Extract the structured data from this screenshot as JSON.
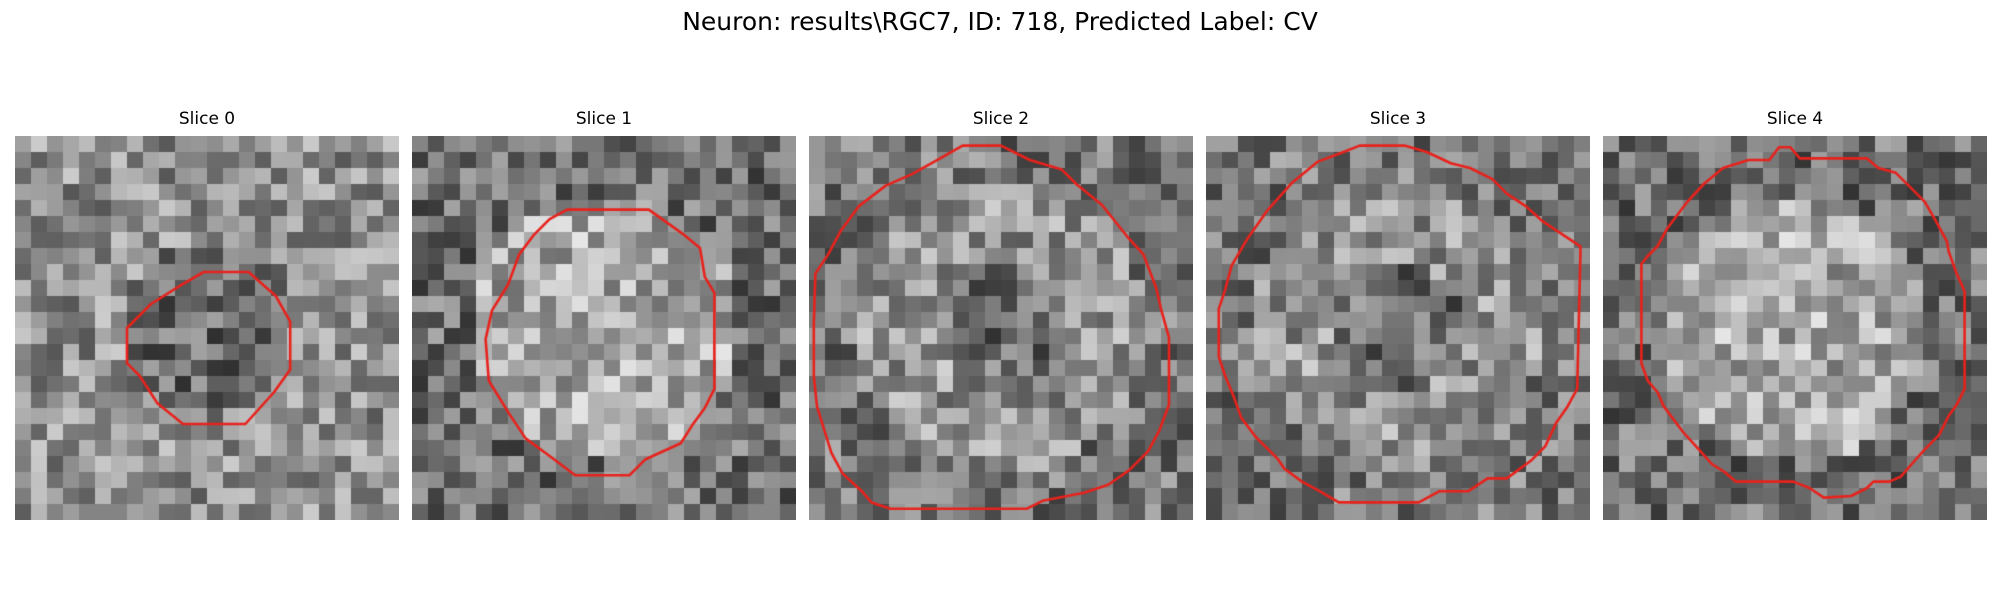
{
  "figure": {
    "title": "Neuron: results\\RGC7, ID: 718, Predicted Label: CV"
  },
  "colormap": "gray",
  "contour_color": "#e8221c",
  "grid": {
    "rows": 24,
    "cols": 24
  },
  "slices": [
    {
      "label": "Slice 0",
      "center_brightness": "dim",
      "contour": [
        [
          11.8,
          8.5
        ],
        [
          14.6,
          8.5
        ],
        [
          16.3,
          10.0
        ],
        [
          17.2,
          11.6
        ],
        [
          17.2,
          14.6
        ],
        [
          16.2,
          16.0
        ],
        [
          14.4,
          18.0
        ],
        [
          10.5,
          18.0
        ],
        [
          8.9,
          16.7
        ],
        [
          7.8,
          15.0
        ],
        [
          7.0,
          14.2
        ],
        [
          7.0,
          12.0
        ],
        [
          8.5,
          10.5
        ],
        [
          10.4,
          9.3
        ]
      ]
    },
    {
      "label": "Slice 1",
      "center_brightness": "bright",
      "contour": [
        [
          9.7,
          4.6
        ],
        [
          14.8,
          4.6
        ],
        [
          16.9,
          6.1
        ],
        [
          18.0,
          7.0
        ],
        [
          18.3,
          8.8
        ],
        [
          18.9,
          9.8
        ],
        [
          18.9,
          15.8
        ],
        [
          18.3,
          17.0
        ],
        [
          17.5,
          18.1
        ],
        [
          16.8,
          19.2
        ],
        [
          14.6,
          20.2
        ],
        [
          13.6,
          21.2
        ],
        [
          10.2,
          21.2
        ],
        [
          8.6,
          20.0
        ],
        [
          7.1,
          18.9
        ],
        [
          6.1,
          17.4
        ],
        [
          4.8,
          15.3
        ],
        [
          4.6,
          12.7
        ],
        [
          5.0,
          10.9
        ],
        [
          6.0,
          9.3
        ],
        [
          6.7,
          7.4
        ],
        [
          7.6,
          6.2
        ],
        [
          8.6,
          5.2
        ]
      ]
    },
    {
      "label": "Slice 2",
      "center_brightness": "mixed",
      "contour": [
        [
          0.4,
          8.6
        ],
        [
          1.2,
          7.4
        ],
        [
          2.0,
          5.9
        ],
        [
          3.1,
          4.4
        ],
        [
          4.8,
          3.1
        ],
        [
          6.4,
          2.4
        ],
        [
          8.2,
          1.4
        ],
        [
          9.6,
          0.6
        ],
        [
          12.0,
          0.6
        ],
        [
          13.8,
          1.5
        ],
        [
          15.8,
          2.1
        ],
        [
          16.7,
          3.0
        ],
        [
          18.3,
          4.3
        ],
        [
          19.9,
          6.3
        ],
        [
          20.9,
          7.4
        ],
        [
          21.7,
          9.5
        ],
        [
          22.0,
          10.8
        ],
        [
          22.5,
          12.6
        ],
        [
          22.5,
          16.8
        ],
        [
          21.9,
          18.4
        ],
        [
          21.2,
          19.7
        ],
        [
          20.0,
          20.9
        ],
        [
          18.7,
          21.8
        ],
        [
          17.2,
          22.3
        ],
        [
          14.6,
          22.8
        ],
        [
          13.6,
          23.3
        ],
        [
          5.1,
          23.3
        ],
        [
          3.9,
          22.9
        ],
        [
          3.3,
          22.2
        ],
        [
          2.1,
          21.1
        ],
        [
          1.4,
          19.8
        ],
        [
          0.9,
          18.2
        ],
        [
          0.5,
          16.9
        ],
        [
          0.3,
          15.0
        ],
        [
          0.3,
          13.6
        ],
        [
          0.3,
          11.8
        ]
      ]
    },
    {
      "label": "Slice 3",
      "center_brightness": "mixed",
      "contour": [
        [
          1.6,
          8.1
        ],
        [
          2.6,
          6.4
        ],
        [
          3.8,
          4.7
        ],
        [
          5.4,
          2.9
        ],
        [
          7.0,
          1.6
        ],
        [
          8.6,
          1.0
        ],
        [
          9.6,
          0.6
        ],
        [
          12.4,
          0.6
        ],
        [
          13.8,
          1.0
        ],
        [
          15.3,
          1.7
        ],
        [
          16.5,
          2.0
        ],
        [
          17.9,
          2.7
        ],
        [
          18.8,
          3.6
        ],
        [
          20.0,
          4.4
        ],
        [
          21.0,
          5.3
        ],
        [
          22.2,
          6.1
        ],
        [
          23.4,
          6.9
        ],
        [
          23.4,
          7.4
        ],
        [
          23.2,
          15.8
        ],
        [
          22.6,
          16.9
        ],
        [
          21.9,
          17.9
        ],
        [
          21.2,
          19.4
        ],
        [
          20.3,
          20.3
        ],
        [
          18.8,
          21.4
        ],
        [
          17.6,
          21.4
        ],
        [
          16.4,
          22.2
        ],
        [
          14.6,
          22.2
        ],
        [
          13.3,
          22.9
        ],
        [
          8.3,
          22.9
        ],
        [
          7.1,
          22.2
        ],
        [
          6.0,
          21.6
        ],
        [
          4.9,
          20.8
        ],
        [
          4.5,
          20.2
        ],
        [
          3.1,
          18.8
        ],
        [
          2.2,
          17.6
        ],
        [
          1.7,
          16.2
        ],
        [
          1.2,
          15.0
        ],
        [
          0.8,
          13.8
        ],
        [
          0.8,
          10.8
        ],
        [
          1.2,
          9.6
        ]
      ]
    },
    {
      "label": "Slice 4",
      "center_brightness": "bright",
      "contour": [
        [
          10.4,
          1.5
        ],
        [
          11.0,
          0.7
        ],
        [
          11.7,
          0.7
        ],
        [
          12.3,
          1.4
        ],
        [
          16.5,
          1.4
        ],
        [
          17.2,
          2.0
        ],
        [
          18.3,
          2.3
        ],
        [
          19.2,
          3.2
        ],
        [
          20.1,
          4.1
        ],
        [
          20.8,
          5.3
        ],
        [
          21.5,
          6.6
        ],
        [
          21.6,
          7.2
        ],
        [
          22.1,
          8.6
        ],
        [
          22.6,
          9.7
        ],
        [
          22.6,
          15.8
        ],
        [
          22.1,
          16.8
        ],
        [
          21.6,
          17.5
        ],
        [
          21.0,
          18.7
        ],
        [
          20.1,
          19.6
        ],
        [
          19.3,
          20.5
        ],
        [
          18.6,
          21.3
        ],
        [
          17.9,
          21.6
        ],
        [
          16.9,
          21.6
        ],
        [
          16.5,
          22.0
        ],
        [
          15.5,
          22.5
        ],
        [
          13.8,
          22.6
        ],
        [
          12.9,
          22.0
        ],
        [
          11.9,
          21.6
        ],
        [
          10.0,
          21.6
        ],
        [
          8.3,
          21.6
        ],
        [
          7.6,
          21.0
        ],
        [
          6.8,
          20.5
        ],
        [
          6.0,
          19.6
        ],
        [
          5.0,
          18.5
        ],
        [
          3.8,
          16.9
        ],
        [
          3.4,
          16.0
        ],
        [
          2.8,
          15.3
        ],
        [
          2.4,
          14.2
        ],
        [
          2.4,
          8.0
        ],
        [
          2.8,
          7.5
        ],
        [
          3.4,
          6.9
        ],
        [
          4.0,
          5.8
        ],
        [
          5.2,
          4.2
        ],
        [
          6.3,
          3.0
        ],
        [
          7.5,
          2.0
        ],
        [
          9.1,
          1.5
        ]
      ]
    }
  ]
}
